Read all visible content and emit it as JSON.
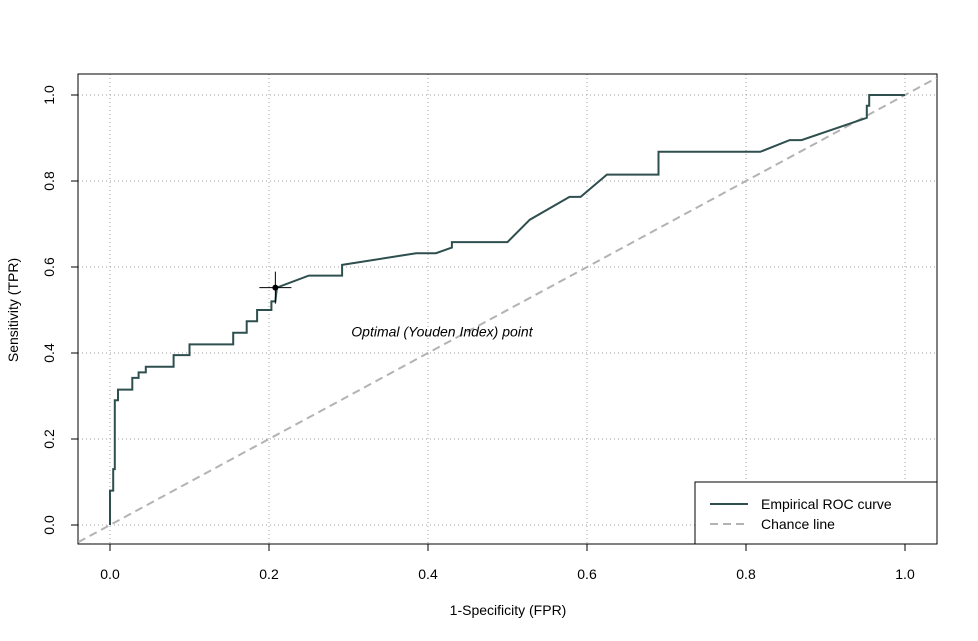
{
  "chart_data": {
    "type": "line",
    "title": "",
    "xlabel": "1-Specificity (FPR)",
    "ylabel": "Sensitivity (TPR)",
    "xlim": [
      0,
      1
    ],
    "ylim": [
      0,
      1
    ],
    "xticks": [
      "0.0",
      "0.2",
      "0.4",
      "0.6",
      "0.8",
      "1.0"
    ],
    "yticks": [
      "0.0",
      "0.2",
      "0.4",
      "0.6",
      "0.8",
      "1.0"
    ],
    "grid": true,
    "legend_position": "bottom-right",
    "colors": {
      "roc": "#2f4f4f",
      "chance": "#b3b3b3",
      "point": "#000000"
    },
    "series": [
      {
        "name": "Empirical ROC curve",
        "style": "solid",
        "x": [
          0.0,
          0.0,
          0.004,
          0.004,
          0.006,
          0.006,
          0.01,
          0.01,
          0.028,
          0.028,
          0.036,
          0.036,
          0.045,
          0.045,
          0.08,
          0.08,
          0.1,
          0.1,
          0.155,
          0.155,
          0.172,
          0.172,
          0.185,
          0.185,
          0.203,
          0.203,
          0.208,
          0.21,
          0.21,
          0.25,
          0.25,
          0.292,
          0.292,
          0.385,
          0.41,
          0.43,
          0.43,
          0.5,
          0.528,
          0.578,
          0.592,
          0.625,
          0.69,
          0.69,
          0.81,
          0.818,
          0.855,
          0.87,
          0.952,
          0.952,
          0.955,
          0.955,
          1.0
        ],
        "y": [
          0.0,
          0.08,
          0.08,
          0.13,
          0.13,
          0.29,
          0.29,
          0.315,
          0.315,
          0.342,
          0.342,
          0.355,
          0.355,
          0.368,
          0.368,
          0.395,
          0.395,
          0.42,
          0.42,
          0.447,
          0.447,
          0.474,
          0.474,
          0.5,
          0.5,
          0.52,
          0.52,
          0.552,
          0.552,
          0.58,
          0.58,
          0.58,
          0.605,
          0.632,
          0.632,
          0.645,
          0.658,
          0.658,
          0.71,
          0.763,
          0.763,
          0.815,
          0.815,
          0.868,
          0.868,
          0.868,
          0.895,
          0.895,
          0.947,
          0.975,
          0.975,
          1.0,
          1.0
        ]
      },
      {
        "name": "Chance line",
        "style": "dashed",
        "x": [
          -0.04,
          1.04
        ],
        "y": [
          -0.04,
          1.04
        ]
      }
    ],
    "optimal_point": {
      "x": 0.208,
      "y": 0.552
    },
    "annotations": [
      {
        "text": "Optimal (Youden Index) point",
        "x": 0.41,
        "y": 0.45
      }
    ]
  }
}
